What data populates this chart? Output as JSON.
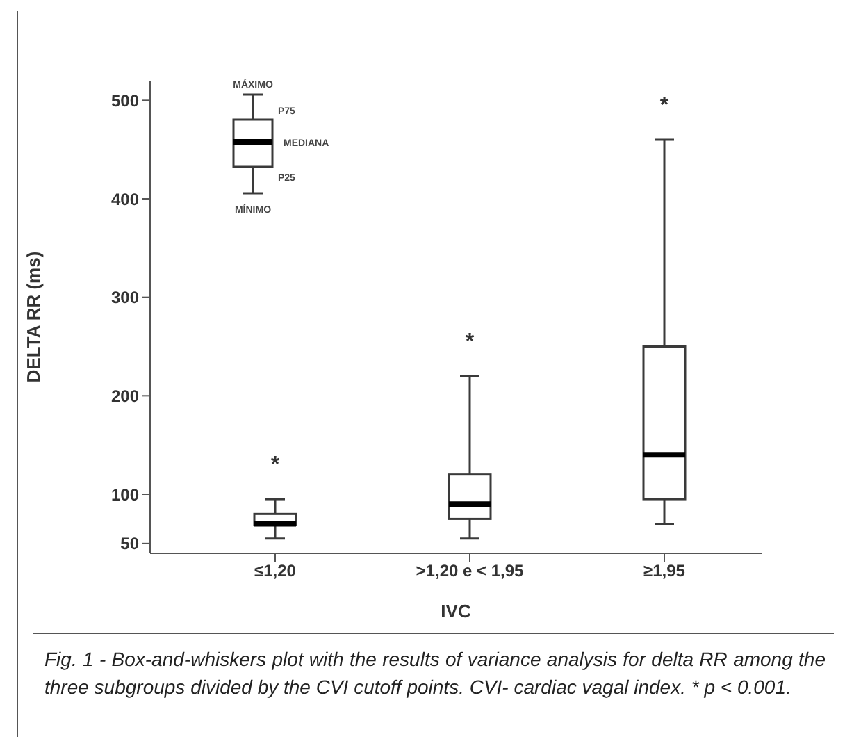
{
  "chart_data": {
    "type": "box",
    "categories": [
      "≤1,20",
      ">1,20 e < 1,95",
      "≥1,95"
    ],
    "boxes": [
      {
        "low": 55,
        "q1": 69,
        "median": 70,
        "q3": 80,
        "high": 95
      },
      {
        "low": 55,
        "q1": 75,
        "median": 90,
        "q3": 120,
        "high": 220
      },
      {
        "low": 70,
        "q1": 95,
        "median": 140,
        "q3": 250,
        "high": 460
      }
    ],
    "xlabel": "IVC",
    "ylabel": "DELTA RR (ms)",
    "ylim": [
      40,
      520
    ],
    "yticks": [
      50,
      100,
      200,
      300,
      400,
      500
    ],
    "grid": false,
    "annotations": [
      "MÁXIMO",
      "P75",
      "MEDIANA",
      "P25",
      "MÍNIMO",
      "*",
      "*",
      "*",
      "Fig. 1 - Box-and-whiskers plot with the results of variance analysis for delta RR among the three subgroups divided by the CVI cutoff points. CVI- cardiac vagal index. * p < 0.001."
    ]
  }
}
